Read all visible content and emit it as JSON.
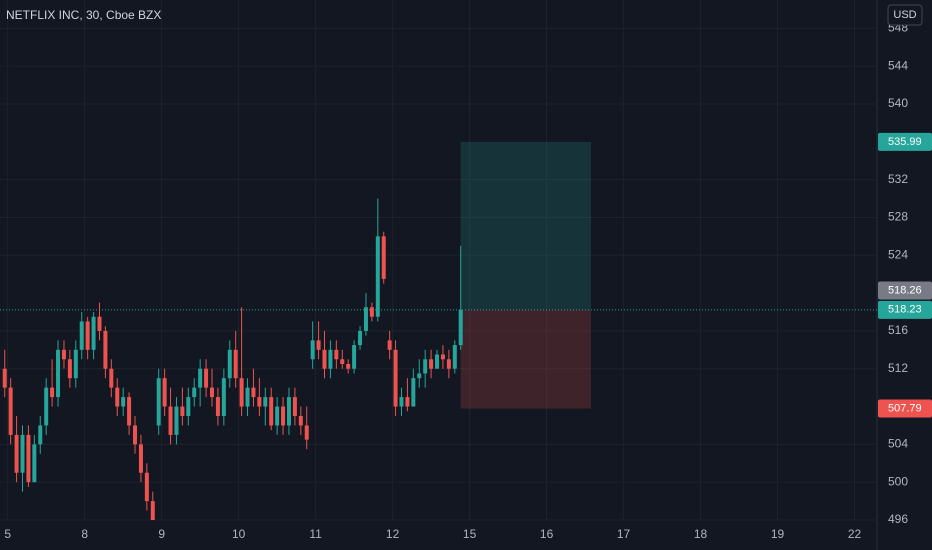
{
  "chart_data": {
    "type": "candlestick",
    "title": "NETFLIX INC, 30, Cboe BZX",
    "currency": "USD",
    "up_color": "#26a69a",
    "down_color": "#ef5350",
    "x": [
      0,
      1,
      2,
      3,
      4,
      5,
      6,
      7,
      8,
      9,
      10,
      11,
      12,
      13,
      14,
      15,
      16,
      17,
      18,
      19,
      20,
      21,
      22,
      23,
      24,
      25,
      26,
      27,
      28,
      29,
      30,
      31,
      32,
      33,
      34,
      35,
      36,
      37,
      38,
      39,
      40,
      41,
      42,
      43,
      44,
      45,
      46,
      47,
      48,
      49,
      50,
      51,
      52,
      53,
      54,
      55,
      56,
      57,
      58,
      59,
      60,
      61,
      62,
      63,
      64,
      65,
      66,
      67,
      68,
      69,
      70,
      71,
      72,
      73,
      74,
      75,
      76,
      77
    ],
    "open": [
      512,
      510,
      505,
      501,
      505,
      500,
      504,
      506,
      510,
      509,
      514,
      513,
      511,
      514,
      517,
      514,
      517.5,
      516,
      512,
      510,
      508,
      509,
      506,
      504,
      501,
      498,
      506,
      511,
      508,
      505,
      508,
      507,
      509,
      510,
      512,
      510,
      509,
      507,
      511,
      514,
      511,
      508,
      510,
      509,
      508,
      509,
      506,
      508,
      506,
      509,
      507,
      506,
      513,
      515,
      514,
      512,
      514,
      513,
      512.5,
      512,
      514.5,
      516,
      518.5,
      517.5,
      526,
      515,
      514,
      508,
      509,
      508,
      511,
      511.5,
      513,
      512,
      513.5,
      513,
      512,
      514.5
    ],
    "high": [
      514,
      511,
      507,
      506,
      506,
      505,
      507,
      511,
      513,
      515,
      515,
      514,
      515,
      518,
      517.5,
      518,
      519,
      516.5,
      513,
      511,
      510,
      509.5,
      507,
      505,
      502,
      499,
      512,
      512,
      510,
      509,
      510,
      510,
      511,
      513,
      513,
      512,
      510,
      512,
      515,
      516,
      518.5,
      511,
      512,
      511,
      510,
      510,
      509,
      509,
      510,
      510,
      508,
      508,
      517,
      517,
      516,
      515,
      515,
      514,
      513,
      515,
      516.5,
      520,
      519,
      530,
      526.5,
      516,
      515,
      510,
      511,
      512,
      513,
      514,
      514,
      514,
      514.5,
      514,
      515,
      525
    ],
    "low": [
      509,
      504,
      500,
      499,
      499.5,
      500,
      503,
      505,
      508,
      508,
      512,
      510,
      510,
      513,
      513,
      513,
      515,
      511,
      509,
      507,
      507,
      505,
      503,
      500,
      497,
      495,
      505,
      507,
      504,
      504,
      506,
      506,
      508,
      508,
      509,
      508,
      506,
      506,
      510,
      510,
      507,
      507,
      508,
      507,
      506,
      505.5,
      505,
      505,
      505,
      506,
      505,
      503.5,
      512,
      513,
      511,
      511,
      512,
      512,
      511.5,
      511.5,
      514,
      515.5,
      517,
      517,
      521,
      513,
      507,
      507,
      507.5,
      508,
      510,
      510,
      511,
      512,
      512,
      511,
      511.5,
      514
    ],
    "close": [
      510,
      505,
      501,
      505,
      500,
      504,
      506,
      510,
      509,
      514,
      513,
      511,
      514,
      517,
      514,
      517.5,
      516,
      512,
      510,
      508,
      509,
      506,
      504,
      501,
      498,
      495.5,
      511,
      508,
      505,
      508,
      507,
      509,
      510,
      512,
      510,
      509,
      507,
      511,
      514,
      511,
      508,
      510,
      509,
      508,
      509,
      506,
      508,
      506,
      509,
      507,
      506,
      504.5,
      515,
      514,
      512,
      514,
      513,
      512.5,
      512,
      514.5,
      516,
      518.5,
      517.5,
      526,
      521.5,
      514,
      508,
      509,
      508,
      511,
      511.5,
      513,
      512,
      513.5,
      513,
      512,
      514.5,
      518.23
    ],
    "last_price": 518.23,
    "position": {
      "target": 535.99,
      "entry": 518.26,
      "stop": 507.79,
      "x_start": 77,
      "x_end": 99
    },
    "xlim": [
      -0.8,
      147.3
    ],
    "ylim": [
      496,
      551
    ],
    "yticks": [
      496,
      500,
      504,
      512,
      516,
      524,
      528,
      532,
      540,
      544,
      548
    ],
    "xticks": [
      {
        "value": 0.5,
        "label": "5"
      },
      {
        "value": 13.5,
        "label": "8"
      },
      {
        "value": 26.5,
        "label": "9"
      },
      {
        "value": 39.5,
        "label": "10"
      },
      {
        "value": 52.5,
        "label": "11"
      },
      {
        "value": 65.5,
        "label": "12"
      },
      {
        "value": 78.5,
        "label": "15"
      },
      {
        "value": 91.5,
        "label": "16"
      },
      {
        "value": 104.5,
        "label": "17"
      },
      {
        "value": 117.5,
        "label": "18"
      },
      {
        "value": 130.5,
        "label": "19"
      },
      {
        "value": 143.5,
        "label": "22"
      }
    ],
    "grid": true
  }
}
